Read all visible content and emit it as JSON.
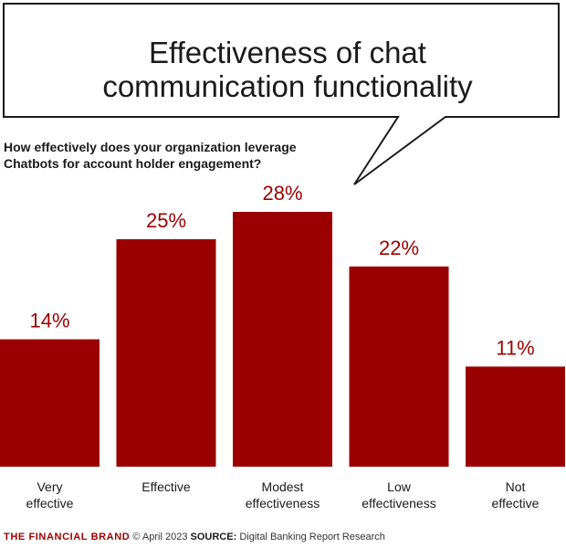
{
  "header": {
    "title_line1": "Effectiveness of chat",
    "title_line2": "communication functionality"
  },
  "question": {
    "line1": "How effectively does your organization leverage",
    "line2": "Chatbots for account holder engagement?"
  },
  "chart_data": {
    "type": "bar",
    "categories": [
      [
        "Very",
        "effective"
      ],
      [
        "Effective"
      ],
      [
        "Modest",
        "effectiveness"
      ],
      [
        "Low",
        "effectiveness"
      ],
      [
        "Not",
        "effective"
      ]
    ],
    "values": [
      14,
      25,
      28,
      22,
      11
    ],
    "value_labels": [
      "14%",
      "25%",
      "28%",
      "22%",
      "11%"
    ],
    "unit": "%",
    "ylim": [
      0,
      28
    ],
    "grid": false,
    "legend": "none",
    "bar_color": "#9b0000"
  },
  "footer": {
    "brand": "THE FINANCIAL BRAND",
    "date_text": "© April 2023",
    "source_label": "SOURCE:",
    "source_text": "Digital Banking Report Research"
  },
  "colors": {
    "accent": "#9b0000",
    "text": "#1a1a1a"
  }
}
